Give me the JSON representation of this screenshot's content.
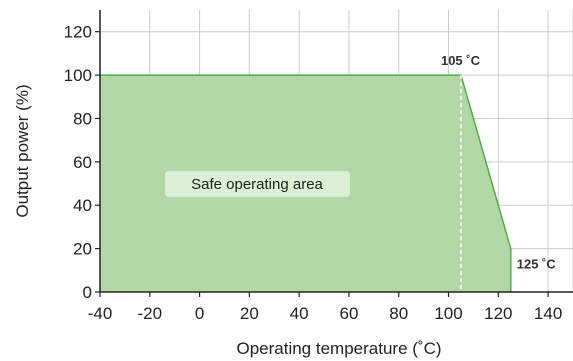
{
  "colors": {
    "area_fill": "#b1d7a6",
    "area_stroke": "#4eae45",
    "grid": "#cccccc",
    "axis": "#222222",
    "label_box": "#dcefd6",
    "marker_line": "#ffffff"
  },
  "chart_data": {
    "type": "area",
    "title": "",
    "xlabel": "Operating temperature (˚C)",
    "ylabel": "Output power (%)",
    "xlim": [
      -40,
      150
    ],
    "ylim": [
      0,
      130
    ],
    "xticks": [
      -40,
      -20,
      0,
      20,
      40,
      60,
      80,
      100,
      120,
      140
    ],
    "yticks": [
      0,
      20,
      40,
      60,
      80,
      100,
      120
    ],
    "grid": true,
    "x": [
      -40,
      105,
      105,
      125,
      125
    ],
    "y": [
      100,
      100,
      100,
      20,
      0
    ],
    "series": [
      {
        "x": [
          -40,
          105,
          125,
          125
        ],
        "values": [
          100,
          100,
          20,
          0
        ]
      }
    ],
    "annotations": [
      {
        "text": "105 ˚C",
        "x": 105,
        "y": 100
      },
      {
        "text": "125 ˚C",
        "x": 125,
        "y": 20
      }
    ],
    "area_label": "Safe operating area",
    "marker_x": 105
  }
}
